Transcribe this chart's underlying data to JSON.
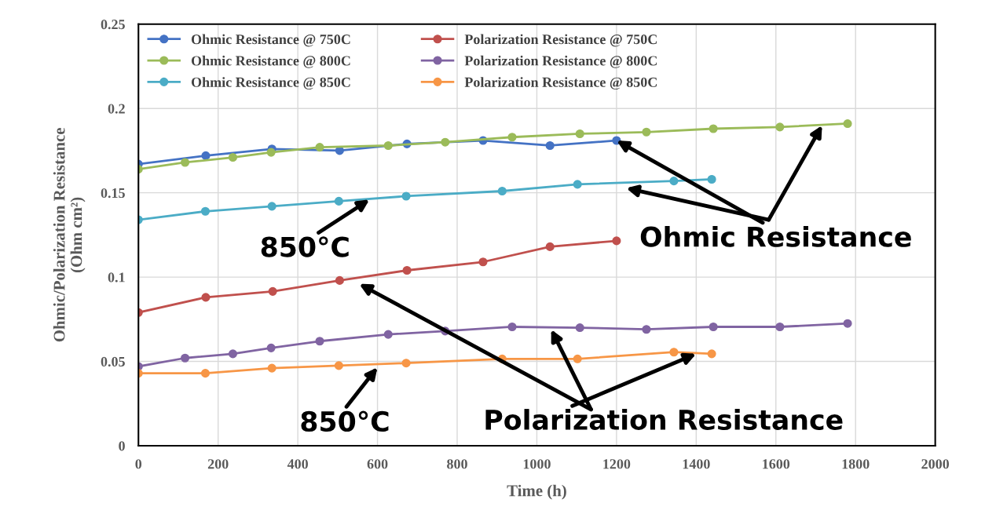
{
  "chart_data": {
    "type": "line",
    "xlabel": "Time (h)",
    "ylabel": "Ohmic/Polarization Resistance\n(Ohm cm²)",
    "xlim": [
      0,
      2000
    ],
    "xticks": [
      0,
      200,
      400,
      600,
      800,
      1000,
      1200,
      1400,
      1600,
      1800,
      2000
    ],
    "ylim": [
      0,
      0.25
    ],
    "yticks": [
      0,
      0.05,
      0.1,
      0.15,
      0.2,
      0.25
    ],
    "grid": true,
    "legend": "top left",
    "marker": "circle",
    "line_style": "solid",
    "series": [
      {
        "name": "Ohmic Resistance @ 750C",
        "color": "#4472c4",
        "x": [
          0,
          169,
          335,
          505,
          674,
          865,
          1033,
          1200
        ],
        "values": [
          0.167,
          0.172,
          0.176,
          0.175,
          0.179,
          0.181,
          0.178,
          0.181
        ]
      },
      {
        "name": "Ohmic Resistance @ 800C",
        "color": "#9bbb59",
        "x": [
          0,
          117,
          237,
          333,
          455,
          627,
          770,
          938,
          1108,
          1275,
          1443,
          1610,
          1780
        ],
        "values": [
          0.164,
          0.168,
          0.171,
          0.174,
          0.177,
          0.178,
          0.18,
          0.183,
          0.185,
          0.186,
          0.188,
          0.189,
          0.191
        ]
      },
      {
        "name": "Ohmic Resistance @ 850C",
        "color": "#4bacc6",
        "x": [
          0,
          168,
          335,
          503,
          672,
          913,
          1102,
          1344,
          1439
        ],
        "values": [
          0.134,
          0.139,
          0.142,
          0.145,
          0.148,
          0.151,
          0.155,
          0.157,
          0.158
        ]
      },
      {
        "name": "Polarization Resistance @ 750C",
        "color": "#c0504d",
        "x": [
          0,
          169,
          337,
          505,
          674,
          865,
          1033,
          1200
        ],
        "values": [
          0.079,
          0.088,
          0.0915,
          0.098,
          0.104,
          0.109,
          0.118,
          0.1215
        ]
      },
      {
        "name": "Polarization Resistance @ 800C",
        "color": "#8064a2",
        "x": [
          0,
          117,
          237,
          333,
          455,
          627,
          770,
          938,
          1108,
          1275,
          1443,
          1610,
          1780
        ],
        "values": [
          0.047,
          0.052,
          0.0545,
          0.058,
          0.062,
          0.066,
          0.068,
          0.0705,
          0.07,
          0.069,
          0.0705,
          0.0705,
          0.0725
        ]
      },
      {
        "name": "Polarization Resistance @ 850C",
        "color": "#f79646",
        "x": [
          0,
          168,
          335,
          503,
          672,
          913,
          1102,
          1344,
          1439
        ],
        "values": [
          0.043,
          0.043,
          0.046,
          0.0475,
          0.049,
          0.0515,
          0.0515,
          0.0555,
          0.0545
        ]
      }
    ],
    "annotations": [
      {
        "text": "850°C",
        "x": 580,
        "y": 0.146
      },
      {
        "text": "Ohmic Resistance",
        "x": 1200,
        "y": 0.181
      },
      {
        "text": "850°C",
        "x": 600,
        "y": 0.0465
      },
      {
        "text": "Polarization Resistance",
        "x": 1400,
        "y": 0.0545
      }
    ]
  }
}
